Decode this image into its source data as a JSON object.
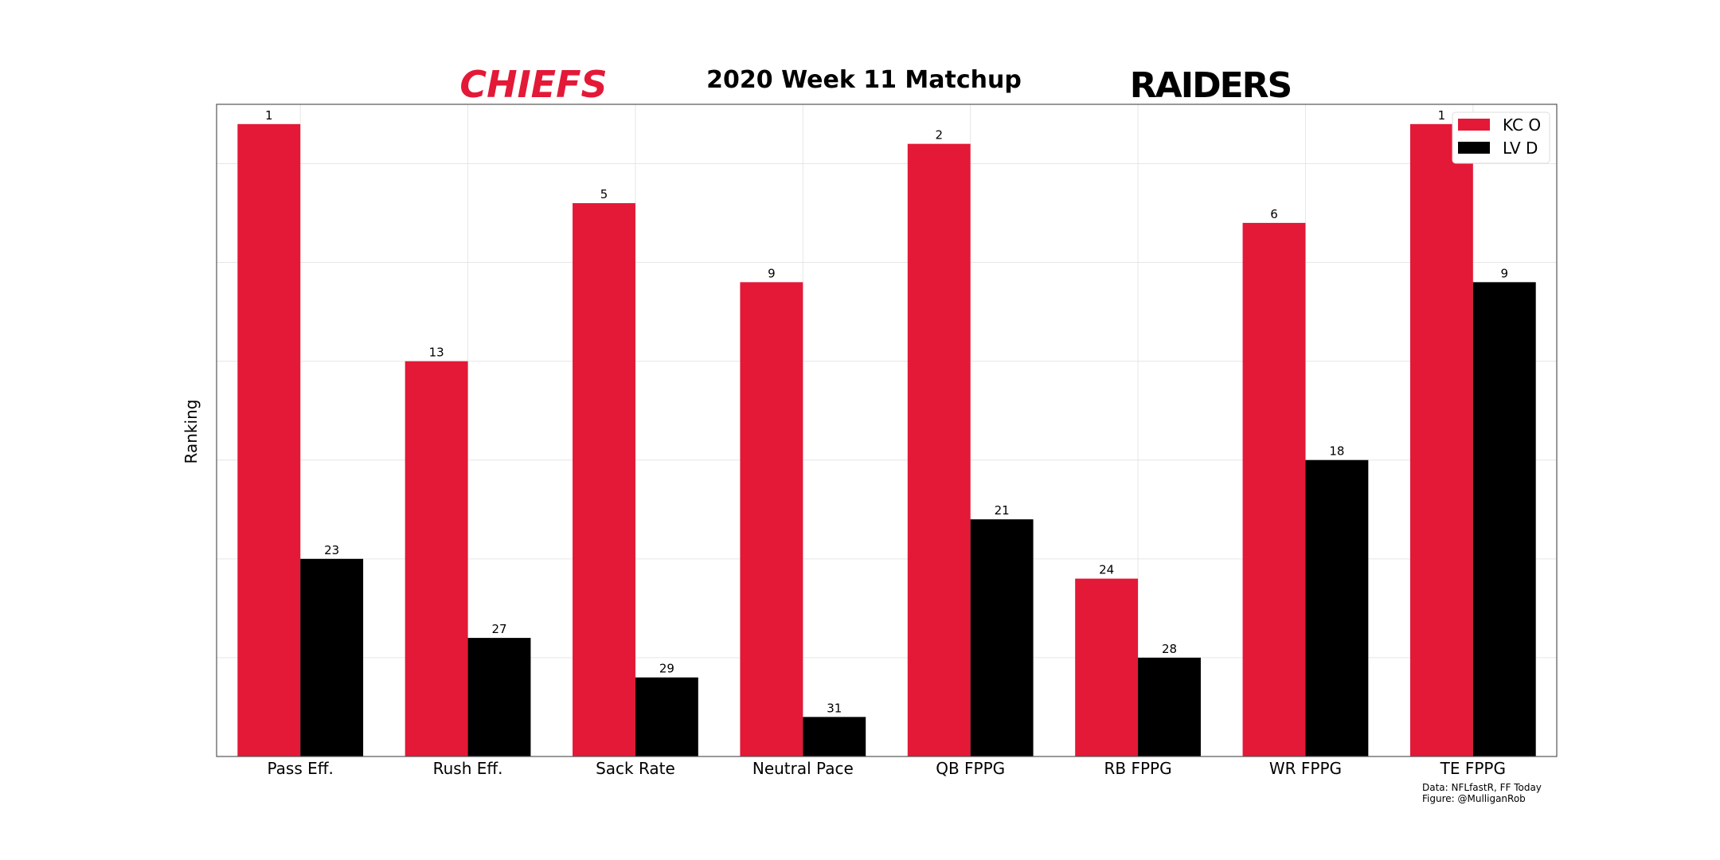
{
  "logos": {
    "left": "CHIEFS",
    "right": "RAIDERS"
  },
  "credits": {
    "line1": "Data: NFLfastR, FF Today",
    "line2": "Figure: @MulliganRob"
  },
  "colors": {
    "kc": "#e31937",
    "lv": "#000000",
    "grid": "#e6e6e6",
    "frame": "#555555"
  },
  "chart_data": {
    "type": "bar",
    "title": "2020 Week 11 Matchup",
    "xlabel": "",
    "ylabel": "Ranking",
    "grid": true,
    "legend_position": "top-right",
    "categories": [
      "Pass Eff.",
      "Rush Eff.",
      "Sack Rate",
      "Neutral Pace",
      "QB FPPG",
      "RB FPPG",
      "WR FPPG",
      "TE FPPG"
    ],
    "series": [
      {
        "name": "KC O",
        "values": [
          1,
          13,
          5,
          9,
          2,
          24,
          6,
          1
        ]
      },
      {
        "name": "LV D",
        "values": [
          23,
          27,
          29,
          31,
          21,
          28,
          18,
          9
        ]
      }
    ],
    "value_scale": "inverted rank (bar height = 33 - rank)",
    "ylim": [
      33,
      0
    ]
  }
}
